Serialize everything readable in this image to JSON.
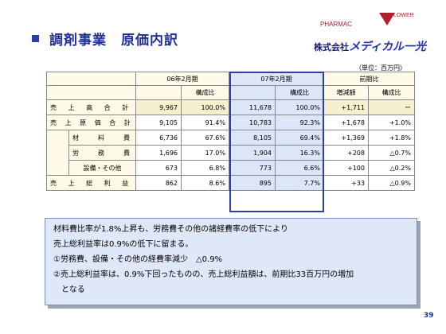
{
  "header": {
    "title": "調剤事業　原価内訳",
    "logo_line1": "PHARMAC",
    "logo_line2": "LOWER",
    "company_prefix": "株式会社",
    "company_brand": "メディカル一光"
  },
  "unit": "（単位：百万円）",
  "table": {
    "group_headers": [
      "06年2月期",
      "07年2月期",
      "前期比"
    ],
    "sub_headers": [
      "構成比",
      "構成比",
      "増減額",
      "構成比"
    ],
    "rows": [
      {
        "label": "売 上 高 合 計",
        "v06": "9,967",
        "p06": "100.0%",
        "v07": "11,678",
        "p07": "100.0%",
        "diff": "+1,711",
        "ratio": "ー"
      },
      {
        "label": "売 上 原 価 合 計",
        "v06": "9,105",
        "p06": "91.4%",
        "v07": "10,783",
        "p07": "92.3%",
        "diff": "+1,678",
        "ratio": "+1.0%"
      },
      {
        "label": "材　料　費",
        "v06": "6,736",
        "p06": "67.6%",
        "v07": "8,105",
        "p07": "69.4%",
        "diff": "+1,369",
        "ratio": "+1.8%"
      },
      {
        "label": "労　務　費",
        "v06": "1,696",
        "p06": "17.0%",
        "v07": "1,904",
        "p07": "16.3%",
        "diff": "+208",
        "ratio": "△0.7%"
      },
      {
        "label": "設備・その他",
        "v06": "673",
        "p06": "6.8%",
        "v07": "773",
        "p07": "6.6%",
        "diff": "+100",
        "ratio": "△0.2%"
      },
      {
        "label": "売 上 総 利 益",
        "v06": "862",
        "p06": "8.6%",
        "v07": "895",
        "p07": "7.7%",
        "diff": "+33",
        "ratio": "△0.9%"
      }
    ]
  },
  "notes": [
    "材料費比率が1.8%上昇も、労務費その他の諸経費率の低下により",
    "売上総利益率は0.9%の低下に留まる。",
    "①労務費、設備・その他の経費率減少　△0.9%",
    "②売上総利益率は、0.9%下回ったものの、売上総利益額は、前期比33百万円の増加",
    "　となる"
  ],
  "page_number": "39"
}
